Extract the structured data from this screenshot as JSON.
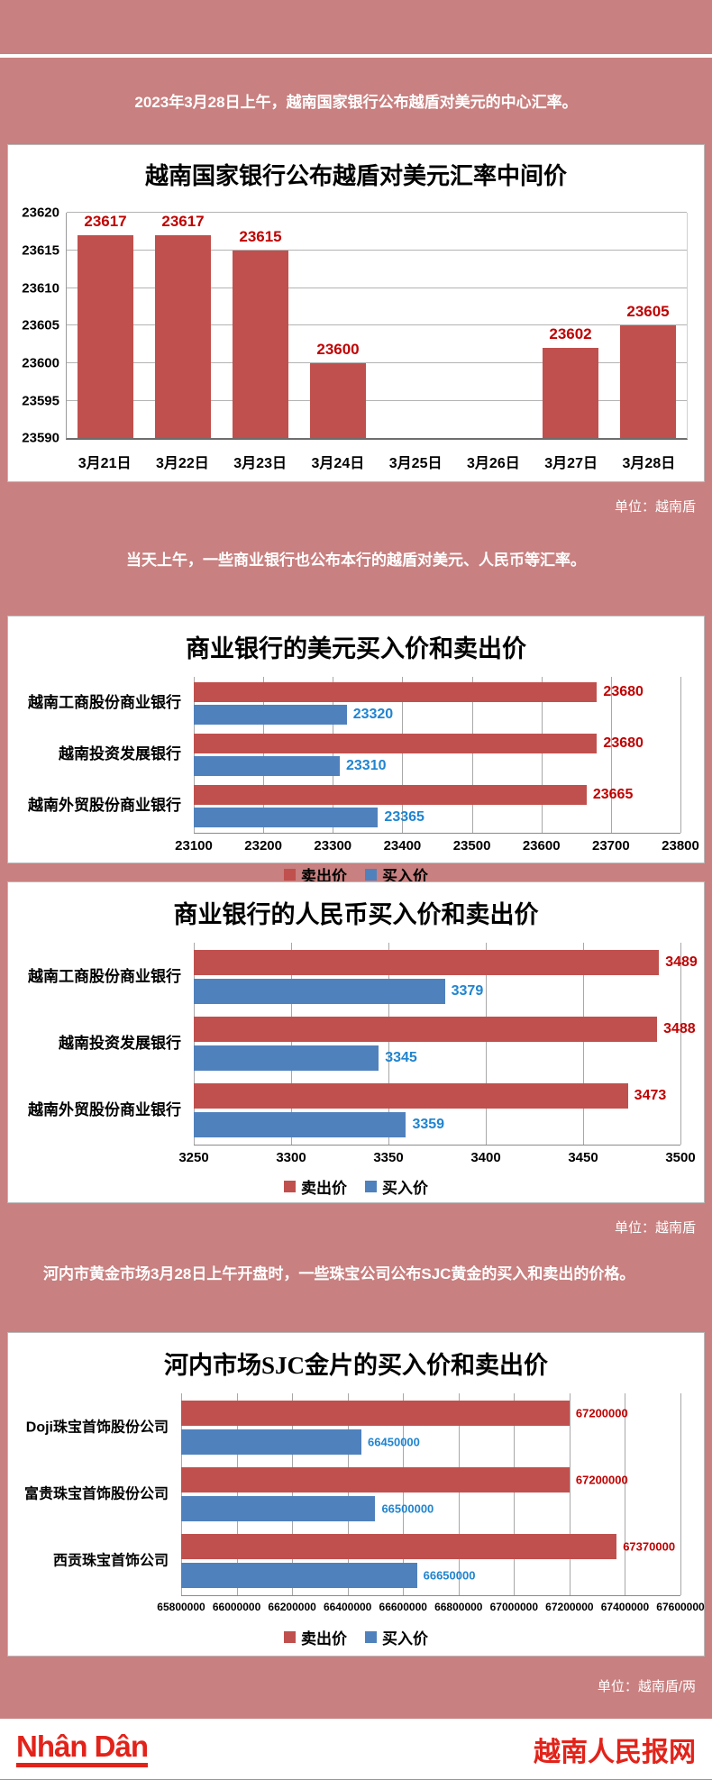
{
  "page": {
    "bg_color": "#c98080",
    "intros": [
      "2023年3月28日上午，越南国家银行公布越盾对美元的中心汇率。",
      "当天上午，一些商业银行也公布本行的越盾对美元、人民币等汇率。",
      "河内市黄金市场3月28日上午开盘时，一些珠宝公司公布SJC黄金的买入和卖出的价格。"
    ],
    "units": [
      "单位：越南盾",
      "单位：越南盾",
      "单位：越南盾/两"
    ],
    "footer": {
      "logo_text": "Nhân Dân",
      "site_name": "越南人民报网",
      "brand_color": "#e2231a"
    }
  },
  "colors": {
    "sell_bar": "#c0504d",
    "buy_bar": "#4f81bd",
    "sell_label": "#c00000",
    "buy_label": "#2084cf",
    "background": "#c98080"
  },
  "legend": {
    "sell": "卖出价",
    "buy": "买入价"
  },
  "chart_data": [
    {
      "type": "bar",
      "title": "越南国家银行公布越盾对美元汇率中间价",
      "categories": [
        "3月21日",
        "3月22日",
        "3月23日",
        "3月24日",
        "3月25日",
        "3月26日",
        "3月27日",
        "3月28日"
      ],
      "values": [
        23617,
        23617,
        23615,
        23600,
        null,
        null,
        23602,
        23605
      ],
      "ylim": [
        23590,
        23620
      ],
      "ytick_step": 5,
      "grid": true,
      "unit": "越南盾",
      "legend_position": "none"
    },
    {
      "type": "bar",
      "orientation": "horizontal",
      "title": "商业银行的美元买入价和卖出价",
      "categories": [
        "越南工商股份商业银行",
        "越南投资发展银行",
        "越南外贸股份商业银行"
      ],
      "series": [
        {
          "name": "卖出价",
          "values": [
            23680,
            23680,
            23665
          ]
        },
        {
          "name": "买入价",
          "values": [
            23320,
            23310,
            23365
          ]
        }
      ],
      "xlim": [
        23100,
        23800
      ],
      "xtick_step": 100,
      "grid": true,
      "unit": "越南盾",
      "legend_position": "bottom"
    },
    {
      "type": "bar",
      "orientation": "horizontal",
      "title": "商业银行的人民币买入价和卖出价",
      "categories": [
        "越南工商股份商业银行",
        "越南投资发展银行",
        "越南外贸股份商业银行"
      ],
      "series": [
        {
          "name": "卖出价",
          "values": [
            3489,
            3488,
            3473
          ]
        },
        {
          "name": "买入价",
          "values": [
            3379,
            3345,
            3359
          ]
        }
      ],
      "xlim": [
        3250,
        3500
      ],
      "xtick_step": 50,
      "grid": true,
      "unit": "越南盾",
      "legend_position": "bottom"
    },
    {
      "type": "bar",
      "orientation": "horizontal",
      "title": "河内市场SJC金片的买入价和卖出价",
      "categories": [
        "Doji珠宝首饰股份公司",
        "富贵珠宝首饰股份公司",
        "西贡珠宝首饰公司"
      ],
      "series": [
        {
          "name": "卖出价",
          "values": [
            67200000,
            67200000,
            67370000
          ]
        },
        {
          "name": "买入价",
          "values": [
            66450000,
            66500000,
            66650000
          ]
        }
      ],
      "xlim": [
        65800000,
        67600000
      ],
      "xtick_step": 200000,
      "grid": true,
      "unit": "越南盾/两",
      "legend_position": "bottom"
    }
  ]
}
